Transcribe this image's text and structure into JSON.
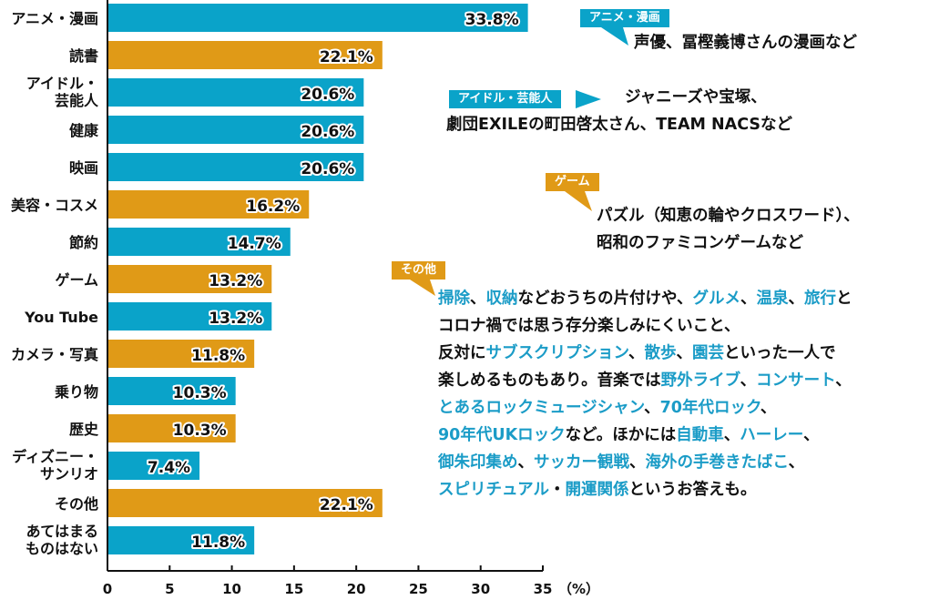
{
  "colors": {
    "blue": "#0aa3c9",
    "orange": "#e09a17",
    "highlight": "#1b9cc7"
  },
  "chart_data": {
    "type": "bar",
    "orientation": "horizontal",
    "categories": [
      [
        "アニメ・漫画"
      ],
      [
        "読書"
      ],
      [
        "アイドル・",
        "芸能人"
      ],
      [
        "健康"
      ],
      [
        "映画"
      ],
      [
        "美容・コスメ"
      ],
      [
        "節約"
      ],
      [
        "ゲーム"
      ],
      [
        "You Tube"
      ],
      [
        "カメラ・写真"
      ],
      [
        "乗り物"
      ],
      [
        "歴史"
      ],
      [
        "ディズニー・",
        "サンリオ"
      ],
      [
        "その他"
      ],
      [
        "あてはまる",
        "ものはない"
      ]
    ],
    "values": [
      33.8,
      22.1,
      20.6,
      20.6,
      20.6,
      16.2,
      14.7,
      13.2,
      13.2,
      11.8,
      10.3,
      10.3,
      7.4,
      22.1,
      11.8
    ],
    "value_labels": [
      "33.8%",
      "22.1%",
      "20.6%",
      "20.6%",
      "20.6%",
      "16.2%",
      "14.7%",
      "13.2%",
      "13.2%",
      "11.8%",
      "10.3%",
      "10.3%",
      "7.4%",
      "22.1%",
      "11.8%"
    ],
    "bar_colors": [
      "blue",
      "orange",
      "blue",
      "blue",
      "blue",
      "orange",
      "blue",
      "orange",
      "blue",
      "orange",
      "blue",
      "orange",
      "blue",
      "orange",
      "blue"
    ],
    "xlim": [
      0,
      35
    ],
    "xticks": [
      0,
      5,
      10,
      15,
      20,
      25,
      30,
      35
    ],
    "xunit": "（%）",
    "grid": false
  },
  "annotations": {
    "anime": {
      "tag": "アニメ・漫画",
      "lines": [
        [
          {
            "t": "声優、冨樫義博さんの漫画など"
          }
        ]
      ]
    },
    "idol": {
      "tag": "アイドル・芸能人",
      "lines": [
        [
          {
            "t": "ジャニーズや宝塚、"
          }
        ],
        [
          {
            "t": "劇団EXILEの町田啓太さん、TEAM NACSなど"
          }
        ]
      ]
    },
    "game": {
      "tag": "ゲーム",
      "lines": [
        [
          {
            "t": "パズル（知恵の輪やクロスワード）、"
          }
        ],
        [
          {
            "t": "昭和のファミコンゲームなど"
          }
        ]
      ]
    },
    "other": {
      "tag": "その他",
      "lines": [
        [
          {
            "t": "掃除",
            "h": 1
          },
          {
            "t": "、"
          },
          {
            "t": "収納",
            "h": 1
          },
          {
            "t": "などおうちの片付けや、"
          },
          {
            "t": "グルメ",
            "h": 1
          },
          {
            "t": "、"
          },
          {
            "t": "温泉",
            "h": 1
          },
          {
            "t": "、"
          },
          {
            "t": "旅行",
            "h": 1
          },
          {
            "t": "と"
          }
        ],
        [
          {
            "t": "コロナ禍では思う存分楽しみにくいこと、"
          }
        ],
        [
          {
            "t": "反対に"
          },
          {
            "t": "サブスクリプション",
            "h": 1
          },
          {
            "t": "、"
          },
          {
            "t": "散歩",
            "h": 1
          },
          {
            "t": "、"
          },
          {
            "t": "園芸",
            "h": 1
          },
          {
            "t": "といった一人で"
          }
        ],
        [
          {
            "t": "楽しめるものもあり。音楽では"
          },
          {
            "t": "野外ライブ",
            "h": 1
          },
          {
            "t": "、"
          },
          {
            "t": "コンサート",
            "h": 1
          },
          {
            "t": "、"
          }
        ],
        [
          {
            "t": "とあるロックミュージシャン",
            "h": 1
          },
          {
            "t": "、"
          },
          {
            "t": "70年代ロック",
            "h": 1
          },
          {
            "t": "、"
          }
        ],
        [
          {
            "t": "90年代UKロック",
            "h": 1
          },
          {
            "t": "など。ほかには"
          },
          {
            "t": "自動車",
            "h": 1
          },
          {
            "t": "、"
          },
          {
            "t": "ハーレー",
            "h": 1
          },
          {
            "t": "、"
          }
        ],
        [
          {
            "t": "御朱印集め",
            "h": 1
          },
          {
            "t": "、"
          },
          {
            "t": "サッカー観戦",
            "h": 1
          },
          {
            "t": "、"
          },
          {
            "t": "海外の手巻きたばこ",
            "h": 1
          },
          {
            "t": "、"
          }
        ],
        [
          {
            "t": "スピリチュアル",
            "h": 1
          },
          {
            "t": "・"
          },
          {
            "t": "開運関係",
            "h": 1
          },
          {
            "t": "というお答えも。"
          }
        ]
      ]
    }
  }
}
